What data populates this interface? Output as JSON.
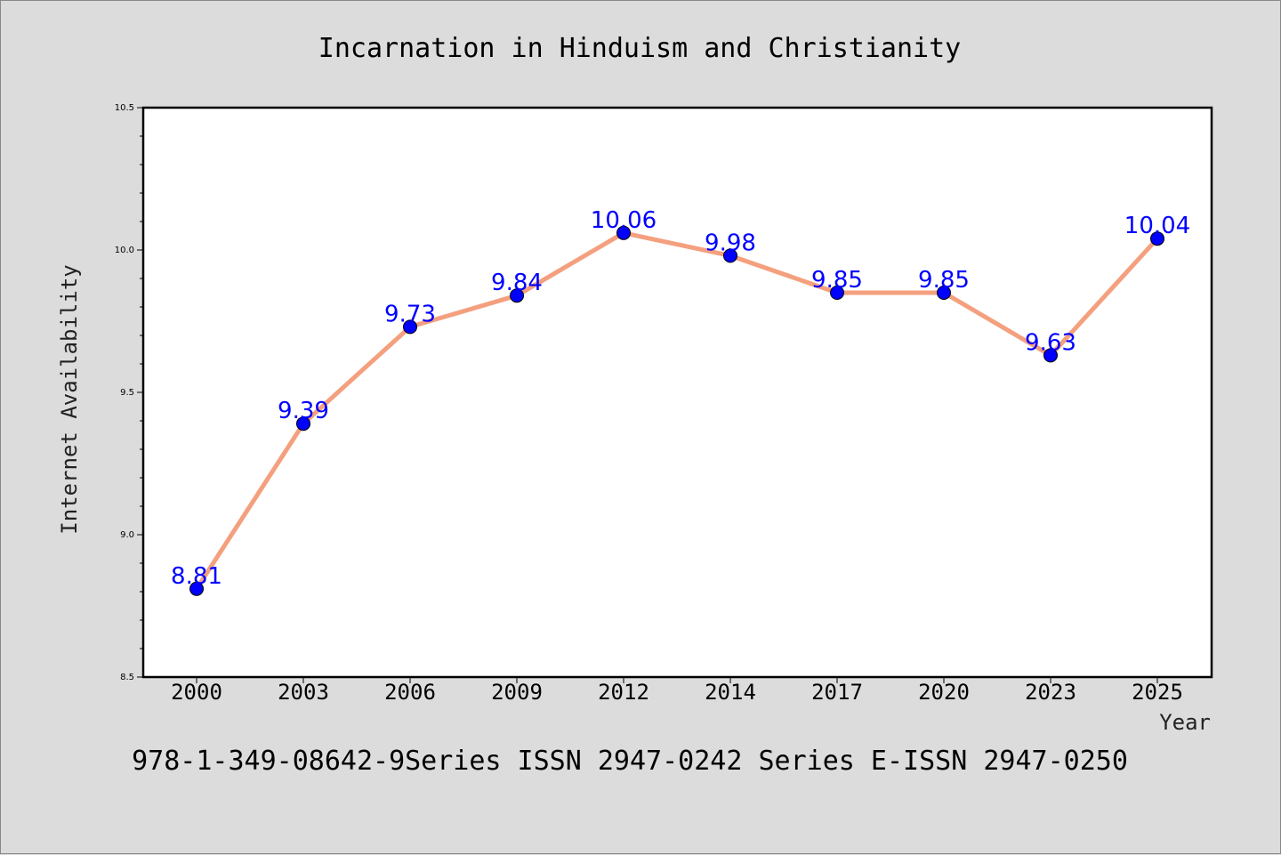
{
  "colors": {
    "background": "#dcdcdc",
    "plot_background": "#ffffff",
    "line": "#f4a07f",
    "marker": "#0000ff",
    "data_label": "#0000ff"
  },
  "footer_text": "978-1-349-08642-9Series ISSN 2947-0242 Series E-ISSN 2947-0250",
  "chart_data": {
    "type": "line",
    "title": "Incarnation in Hinduism and Christianity",
    "xlabel": "Year",
    "ylabel": "Internet Availability",
    "categories": [
      "2000",
      "2003",
      "2006",
      "2009",
      "2012",
      "2014",
      "2017",
      "2020",
      "2023",
      "2025"
    ],
    "series": [
      {
        "values": [
          8.81,
          9.39,
          9.73,
          9.84,
          10.06,
          9.98,
          9.85,
          9.85,
          9.63,
          10.04
        ],
        "labels": [
          "8.81",
          "9.39",
          "9.73",
          "9.84",
          "10.06",
          "9.98",
          "9.85",
          "9.85",
          "9.63",
          "10.04"
        ],
        "marker": "circle"
      }
    ],
    "ylim": [
      8.5,
      10.5
    ],
    "yticks": [
      "8.5",
      "9.0",
      "9.5",
      "10.0",
      "10.5"
    ],
    "minor_ticks_per_major": 4,
    "grid": false,
    "legend": "none"
  }
}
